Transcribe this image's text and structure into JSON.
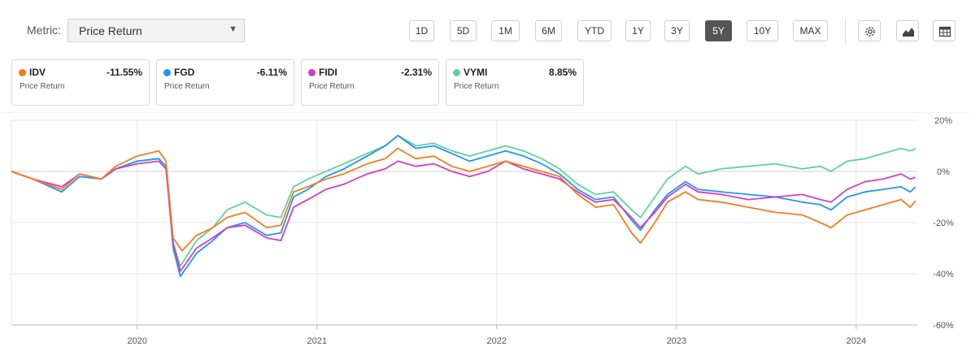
{
  "metric": {
    "label": "Metric:",
    "value": "Price Return"
  },
  "ranges": [
    "1D",
    "5D",
    "1M",
    "6M",
    "YTD",
    "1Y",
    "3Y",
    "5Y",
    "10Y",
    "MAX"
  ],
  "active_range": "5Y",
  "toolbar_icons": [
    "gear-icon",
    "mountain-chart-icon",
    "table-icon"
  ],
  "cards": [
    {
      "ticker": "IDV",
      "value": "-11.55%",
      "sub": "Price Return",
      "color": "#f57c1f"
    },
    {
      "ticker": "FGD",
      "value": "-6.11%",
      "sub": "Price Return",
      "color": "#2196f3"
    },
    {
      "ticker": "FIDI",
      "value": "-2.31%",
      "sub": "Price Return",
      "color": "#d63cc4"
    },
    {
      "ticker": "VYMI",
      "value": "8.85%",
      "sub": "Price Return",
      "color": "#5fd39a"
    }
  ],
  "chart_data": {
    "type": "line",
    "title": "",
    "xlabel": "",
    "ylabel": "",
    "x_tick_labels": [
      "2020",
      "2021",
      "2022",
      "2023",
      "2024"
    ],
    "y_tick_labels": [
      "20%",
      "0%",
      "-20%",
      "-40%",
      "-60%"
    ],
    "y_ticks": [
      20,
      0,
      -20,
      -40,
      -60
    ],
    "ylim": [
      -60,
      20
    ],
    "xlim": [
      2019.3,
      2024.34
    ],
    "x_ticks": [
      2020,
      2021,
      2022,
      2023,
      2024
    ],
    "grid": true,
    "series": [
      {
        "name": "IDV",
        "color": "#f57c1f",
        "points": [
          [
            2019.3,
            0
          ],
          [
            2019.42,
            -3
          ],
          [
            2019.58,
            -7
          ],
          [
            2019.68,
            -1
          ],
          [
            2019.8,
            -3
          ],
          [
            2019.88,
            2
          ],
          [
            2020.0,
            6
          ],
          [
            2020.12,
            8
          ],
          [
            2020.16,
            4
          ],
          [
            2020.2,
            -26
          ],
          [
            2020.25,
            -31
          ],
          [
            2020.33,
            -25
          ],
          [
            2020.42,
            -22
          ],
          [
            2020.5,
            -18
          ],
          [
            2020.6,
            -16
          ],
          [
            2020.72,
            -22
          ],
          [
            2020.8,
            -21
          ],
          [
            2020.87,
            -8
          ],
          [
            2020.95,
            -6
          ],
          [
            2021.05,
            -3
          ],
          [
            2021.15,
            -1
          ],
          [
            2021.28,
            3
          ],
          [
            2021.38,
            5
          ],
          [
            2021.45,
            9
          ],
          [
            2021.55,
            5
          ],
          [
            2021.65,
            6
          ],
          [
            2021.75,
            2
          ],
          [
            2021.85,
            0
          ],
          [
            2021.95,
            2
          ],
          [
            2022.05,
            4
          ],
          [
            2022.15,
            2
          ],
          [
            2022.25,
            0
          ],
          [
            2022.35,
            -2
          ],
          [
            2022.45,
            -9
          ],
          [
            2022.55,
            -14
          ],
          [
            2022.65,
            -13
          ],
          [
            2022.75,
            -24
          ],
          [
            2022.8,
            -28
          ],
          [
            2022.88,
            -20
          ],
          [
            2022.95,
            -12
          ],
          [
            2023.05,
            -8
          ],
          [
            2023.12,
            -11
          ],
          [
            2023.25,
            -12
          ],
          [
            2023.4,
            -14
          ],
          [
            2023.55,
            -16
          ],
          [
            2023.7,
            -17
          ],
          [
            2023.8,
            -20
          ],
          [
            2023.86,
            -22
          ],
          [
            2023.95,
            -17
          ],
          [
            2024.05,
            -15
          ],
          [
            2024.15,
            -13
          ],
          [
            2024.25,
            -11
          ],
          [
            2024.3,
            -14
          ],
          [
            2024.33,
            -11.55
          ]
        ]
      },
      {
        "name": "FGD",
        "color": "#2196f3",
        "points": [
          [
            2019.3,
            0
          ],
          [
            2019.42,
            -3
          ],
          [
            2019.58,
            -8
          ],
          [
            2019.68,
            -2
          ],
          [
            2019.8,
            -3
          ],
          [
            2019.88,
            1
          ],
          [
            2020.0,
            4
          ],
          [
            2020.12,
            5
          ],
          [
            2020.16,
            2
          ],
          [
            2020.2,
            -30
          ],
          [
            2020.24,
            -41
          ],
          [
            2020.33,
            -32
          ],
          [
            2020.42,
            -27
          ],
          [
            2020.5,
            -22
          ],
          [
            2020.6,
            -20
          ],
          [
            2020.72,
            -25
          ],
          [
            2020.8,
            -24
          ],
          [
            2020.87,
            -10
          ],
          [
            2020.95,
            -7
          ],
          [
            2021.05,
            -2
          ],
          [
            2021.15,
            1
          ],
          [
            2021.28,
            6
          ],
          [
            2021.38,
            10
          ],
          [
            2021.45,
            14
          ],
          [
            2021.55,
            9
          ],
          [
            2021.65,
            10
          ],
          [
            2021.75,
            7
          ],
          [
            2021.85,
            4
          ],
          [
            2021.95,
            6
          ],
          [
            2022.05,
            8
          ],
          [
            2022.15,
            6
          ],
          [
            2022.25,
            3
          ],
          [
            2022.35,
            -1
          ],
          [
            2022.45,
            -7
          ],
          [
            2022.55,
            -11
          ],
          [
            2022.65,
            -10
          ],
          [
            2022.75,
            -19
          ],
          [
            2022.8,
            -23
          ],
          [
            2022.88,
            -15
          ],
          [
            2022.95,
            -9
          ],
          [
            2023.05,
            -4
          ],
          [
            2023.12,
            -7
          ],
          [
            2023.25,
            -8
          ],
          [
            2023.4,
            -9
          ],
          [
            2023.55,
            -10
          ],
          [
            2023.7,
            -12
          ],
          [
            2023.8,
            -13
          ],
          [
            2023.86,
            -15
          ],
          [
            2023.95,
            -10
          ],
          [
            2024.05,
            -8
          ],
          [
            2024.15,
            -7
          ],
          [
            2024.25,
            -6
          ],
          [
            2024.3,
            -8
          ],
          [
            2024.33,
            -6.11
          ]
        ]
      },
      {
        "name": "FIDI",
        "color": "#d63cc4",
        "points": [
          [
            2019.3,
            0
          ],
          [
            2019.42,
            -3
          ],
          [
            2019.58,
            -6
          ],
          [
            2019.68,
            -1
          ],
          [
            2019.8,
            -3
          ],
          [
            2019.88,
            1
          ],
          [
            2020.0,
            3
          ],
          [
            2020.12,
            4
          ],
          [
            2020.16,
            1
          ],
          [
            2020.2,
            -28
          ],
          [
            2020.24,
            -39
          ],
          [
            2020.33,
            -30
          ],
          [
            2020.42,
            -26
          ],
          [
            2020.5,
            -22
          ],
          [
            2020.6,
            -21
          ],
          [
            2020.72,
            -26
          ],
          [
            2020.8,
            -27
          ],
          [
            2020.87,
            -14
          ],
          [
            2020.95,
            -11
          ],
          [
            2021.05,
            -7
          ],
          [
            2021.15,
            -5
          ],
          [
            2021.28,
            -1
          ],
          [
            2021.38,
            1
          ],
          [
            2021.45,
            4
          ],
          [
            2021.55,
            2
          ],
          [
            2021.65,
            3
          ],
          [
            2021.75,
            0
          ],
          [
            2021.85,
            -2
          ],
          [
            2021.95,
            0
          ],
          [
            2022.05,
            4
          ],
          [
            2022.15,
            1
          ],
          [
            2022.25,
            -1
          ],
          [
            2022.35,
            -3
          ],
          [
            2022.45,
            -8
          ],
          [
            2022.55,
            -12
          ],
          [
            2022.65,
            -11
          ],
          [
            2022.75,
            -18
          ],
          [
            2022.8,
            -22
          ],
          [
            2022.88,
            -16
          ],
          [
            2022.95,
            -10
          ],
          [
            2023.05,
            -5
          ],
          [
            2023.12,
            -8
          ],
          [
            2023.25,
            -9
          ],
          [
            2023.4,
            -11
          ],
          [
            2023.55,
            -10
          ],
          [
            2023.7,
            -9
          ],
          [
            2023.8,
            -11
          ],
          [
            2023.86,
            -12
          ],
          [
            2023.95,
            -7
          ],
          [
            2024.05,
            -4
          ],
          [
            2024.15,
            -3
          ],
          [
            2024.25,
            -1
          ],
          [
            2024.3,
            -3
          ],
          [
            2024.33,
            -2.31
          ]
        ]
      },
      {
        "name": "VYMI",
        "color": "#5fd39a",
        "points": [
          [
            2019.3,
            0
          ],
          [
            2019.42,
            -3
          ],
          [
            2019.58,
            -7
          ],
          [
            2019.68,
            -1
          ],
          [
            2019.8,
            -3
          ],
          [
            2019.88,
            1
          ],
          [
            2020.0,
            4
          ],
          [
            2020.12,
            5
          ],
          [
            2020.16,
            2
          ],
          [
            2020.2,
            -28
          ],
          [
            2020.24,
            -37
          ],
          [
            2020.33,
            -27
          ],
          [
            2020.42,
            -22
          ],
          [
            2020.5,
            -15
          ],
          [
            2020.6,
            -12
          ],
          [
            2020.72,
            -17
          ],
          [
            2020.8,
            -18
          ],
          [
            2020.87,
            -6
          ],
          [
            2020.95,
            -3
          ],
          [
            2021.05,
            0
          ],
          [
            2021.15,
            3
          ],
          [
            2021.28,
            7
          ],
          [
            2021.38,
            10
          ],
          [
            2021.45,
            14
          ],
          [
            2021.55,
            10
          ],
          [
            2021.65,
            11
          ],
          [
            2021.75,
            8
          ],
          [
            2021.85,
            6
          ],
          [
            2021.95,
            8
          ],
          [
            2022.05,
            10
          ],
          [
            2022.15,
            8
          ],
          [
            2022.25,
            5
          ],
          [
            2022.35,
            1
          ],
          [
            2022.45,
            -5
          ],
          [
            2022.55,
            -9
          ],
          [
            2022.65,
            -8
          ],
          [
            2022.75,
            -15
          ],
          [
            2022.8,
            -18
          ],
          [
            2022.88,
            -10
          ],
          [
            2022.95,
            -3
          ],
          [
            2023.05,
            2
          ],
          [
            2023.12,
            -1
          ],
          [
            2023.25,
            1
          ],
          [
            2023.4,
            2
          ],
          [
            2023.55,
            3
          ],
          [
            2023.7,
            1
          ],
          [
            2023.8,
            2
          ],
          [
            2023.86,
            0
          ],
          [
            2023.95,
            4
          ],
          [
            2024.05,
            5
          ],
          [
            2024.15,
            7
          ],
          [
            2024.25,
            9
          ],
          [
            2024.3,
            8
          ],
          [
            2024.33,
            8.85
          ]
        ]
      }
    ]
  }
}
